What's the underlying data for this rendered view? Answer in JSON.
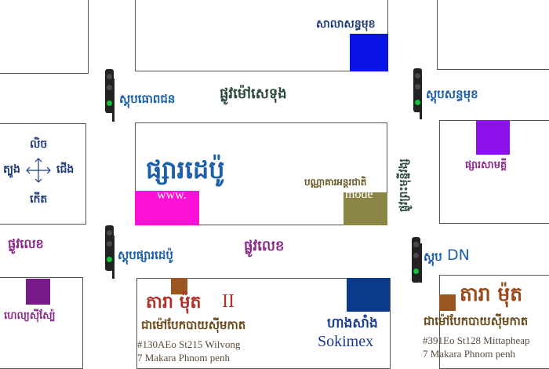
{
  "colors": {
    "blue_square": "#0a14e6",
    "magenta_square": "#ff10d8",
    "olive_square": "#8b8645",
    "purple_square": "#8c10e8",
    "dark_purple_square": "#7a1a8a",
    "brown_square": "#9a5520",
    "navy_square": "#0b3a8a",
    "road_label": "#1f3a7a",
    "place_label": "#8a2a8a"
  },
  "labels": {
    "bank_top": "សាលាសន្ធមុខ",
    "roundabout_left": "ស្តុបធោពជន",
    "road_mao": "ផ្លូវម៉ៅសេទុង",
    "roundabout_right": "ស្តុបសន្ធមុខ",
    "compass_north": "លិច",
    "compass_west": "ត្បូង",
    "compass_east": "ជើង",
    "compass_south": "កើត",
    "market_big": "ផ្សារដេប៉ូ",
    "www_text": "www.",
    "model_text": "mode",
    "model_khmer": "បណ្ណាគារអន្តរជាតិ",
    "road_vertical": "ផ្លូវព្រះមុន្នីវង្ស",
    "market_small": "ផ្សារសាមគ្គី",
    "road_left": "ផ្លូវលេខ",
    "roundabout_depo": "ស្តុបផ្សារដេប៉ូ",
    "road_mid": "ផ្លូវលេខ",
    "roundabout_dn": "ស្តុប",
    "roundabout_dn_latin": "DN",
    "shop_left": "ហេល្យស៊ីស្ប៉ែ",
    "shop1_name": "តារា ម៉ុត",
    "shop1_num": "II",
    "shop1_sub": "ជាម៉ៅបែកបាយស៊ីមកាត",
    "shop1_addr1": "#130AEo St215 Wilvong",
    "shop1_addr2": "7 Makara Phnom penh",
    "sokimex_khmer": "ហាងសាំង",
    "sokimex_latin": "Sokimex",
    "shop2_name": "តារា ម៉ុត",
    "shop2_sub": "ជាម៉ៅបែកបាយស៊ីមកាត",
    "shop2_addr1": "#391Eo St128 Mittapheap",
    "shop2_addr2": "7 Makara Phnom penh"
  }
}
